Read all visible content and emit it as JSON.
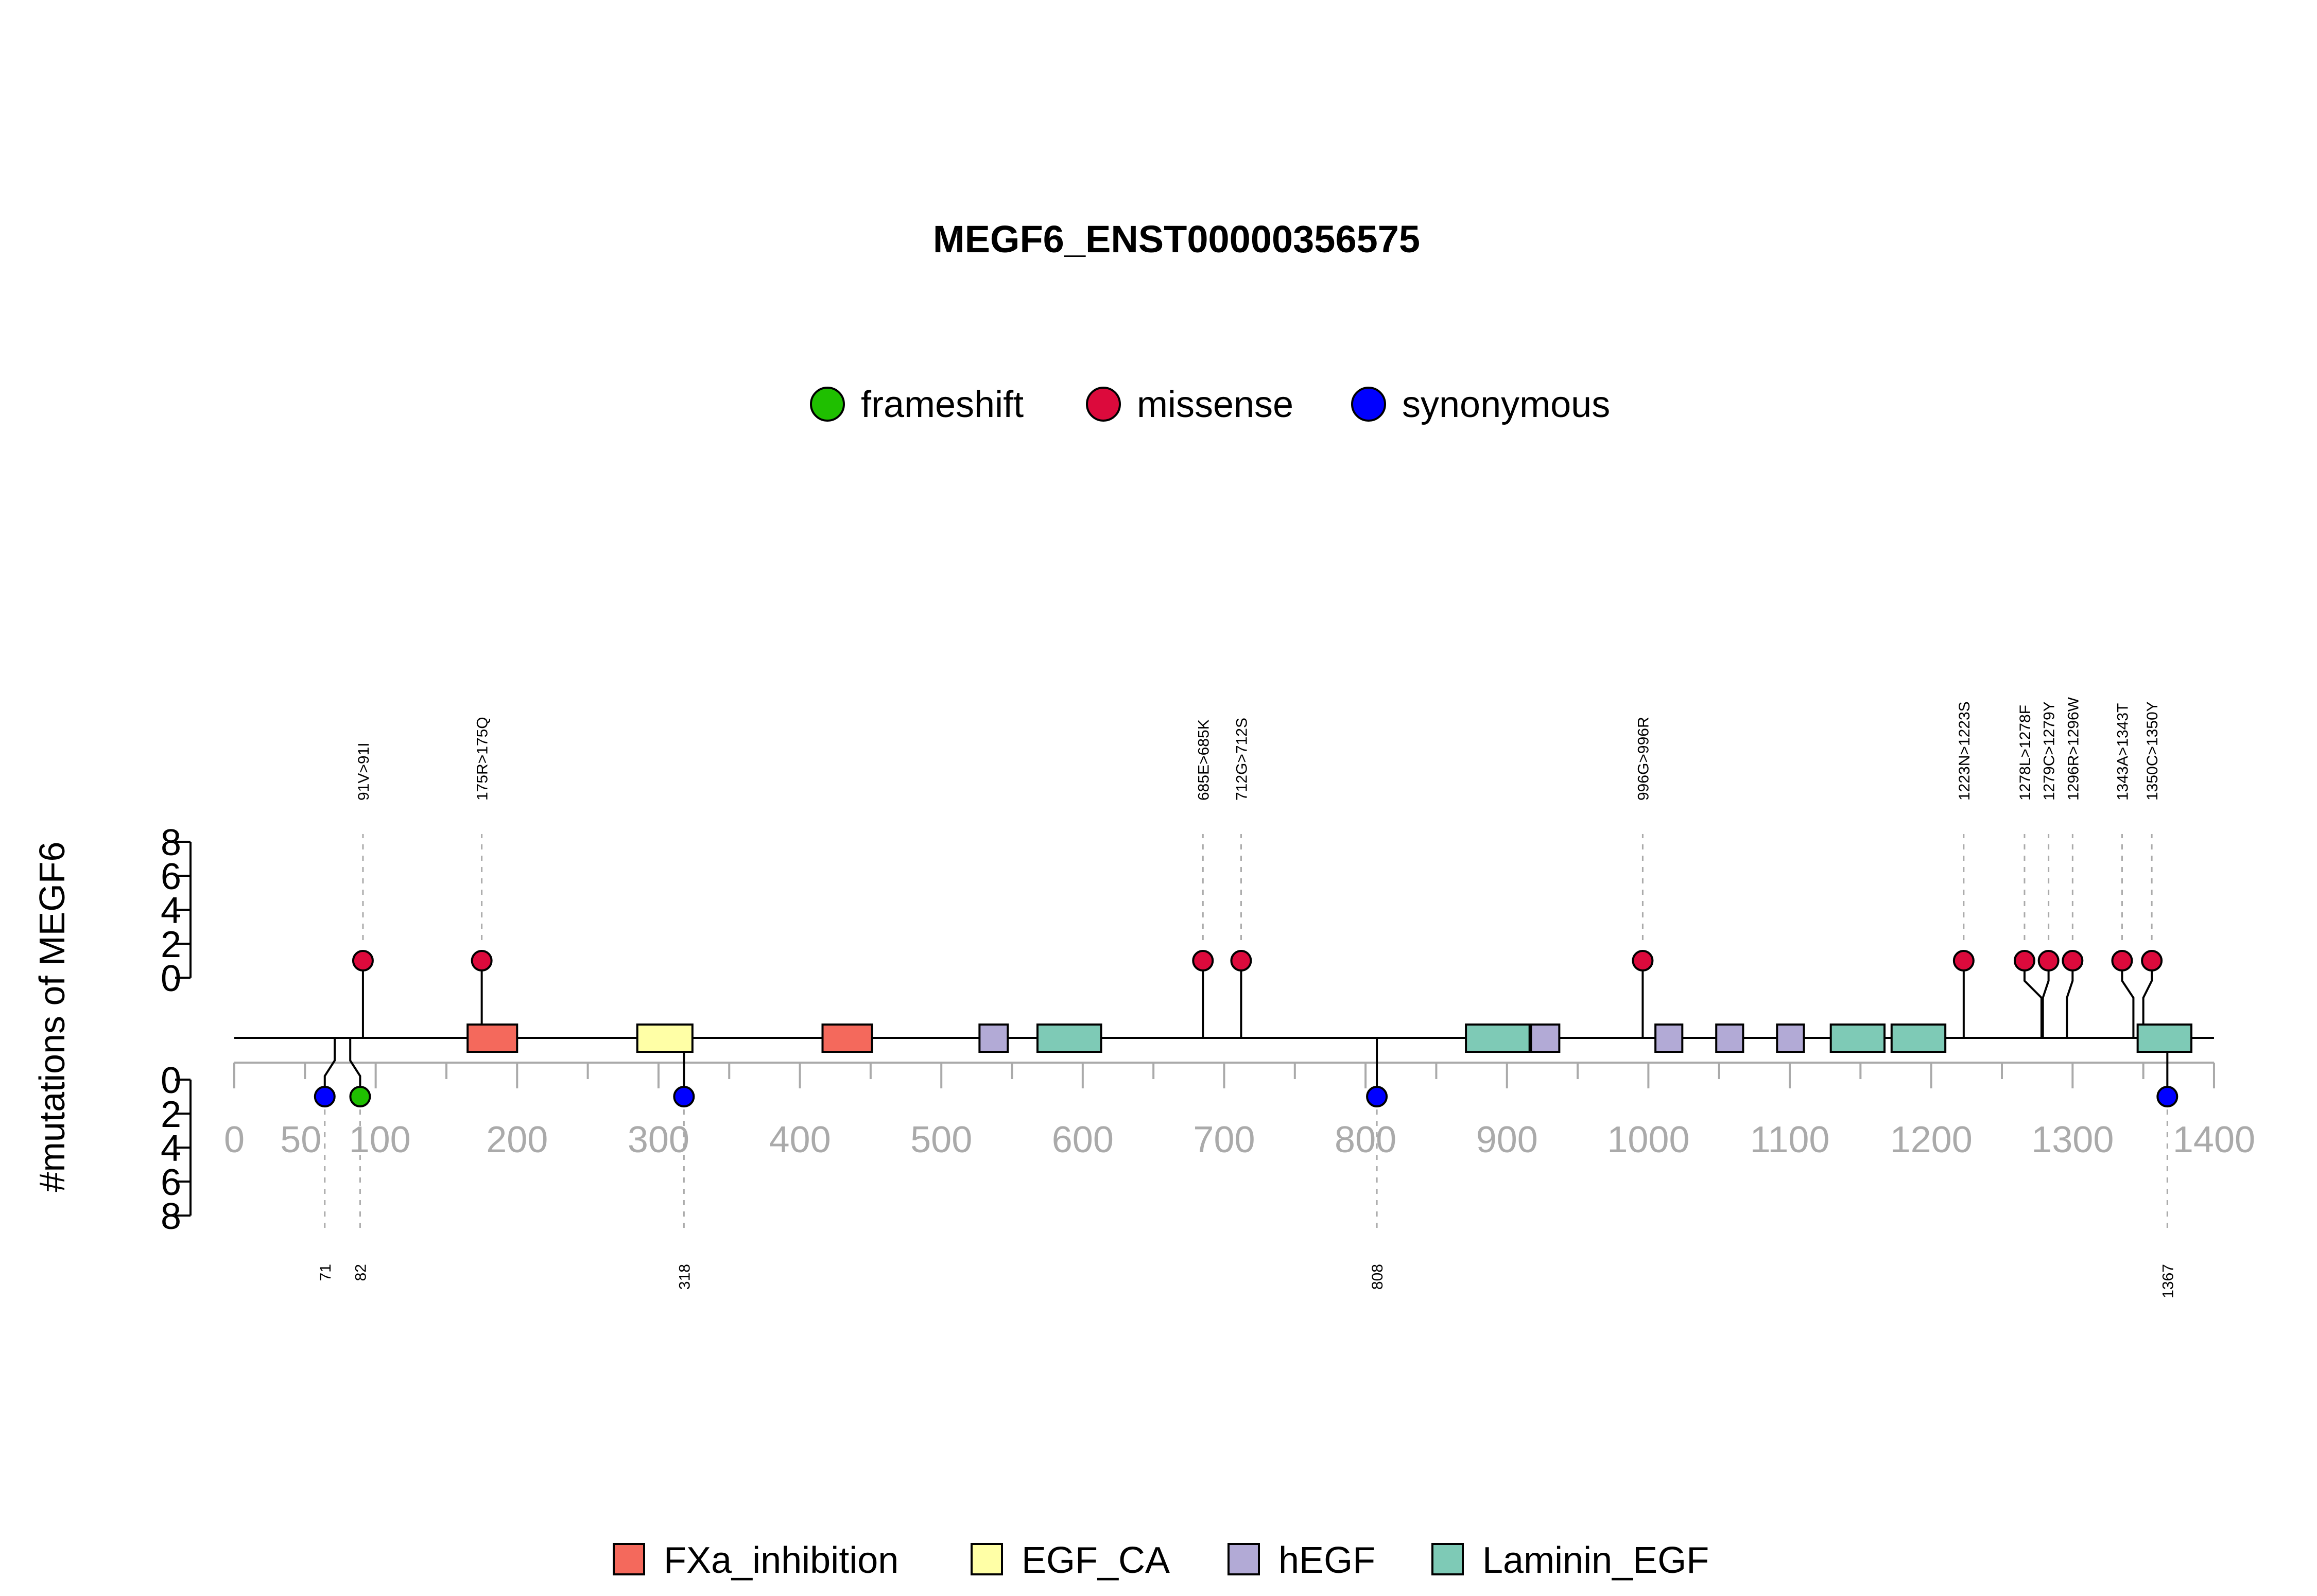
{
  "chart_data": {
    "type": "lollipop",
    "title": "MEGF6_ENST00000356575",
    "ylabel": "#mutations of MEGF6",
    "xlim": [
      0,
      1400
    ],
    "x_ticks": [
      0,
      50,
      100,
      200,
      300,
      400,
      500,
      600,
      700,
      800,
      900,
      1000,
      1100,
      1200,
      1300,
      1400
    ],
    "y_ticks": [
      0,
      2,
      4,
      6,
      8
    ],
    "ylim": [
      0,
      8
    ],
    "mutation_legend": [
      {
        "name": "frameshift",
        "color": "#1FBF00"
      },
      {
        "name": "missense",
        "color": "#DC0A3C"
      },
      {
        "name": "synonymous",
        "color": "#0000FF"
      }
    ],
    "domain_legend": [
      {
        "name": "FXa_inhibition",
        "color": "#F4695C"
      },
      {
        "name": "EGF_CA",
        "color": "#FFFFA6"
      },
      {
        "name": "hEGF",
        "color": "#B2AAD6"
      },
      {
        "name": "Laminin_EGF",
        "color": "#7ECAB6"
      }
    ],
    "domains": [
      {
        "name": "FXa_inhibition",
        "start": 165,
        "end": 200
      },
      {
        "name": "EGF_CA",
        "start": 285,
        "end": 324
      },
      {
        "name": "FXa_inhibition",
        "start": 416,
        "end": 451
      },
      {
        "name": "hEGF",
        "start": 527,
        "end": 547
      },
      {
        "name": "Laminin_EGF",
        "start": 568,
        "end": 613
      },
      {
        "name": "Laminin_EGF",
        "start": 871,
        "end": 916
      },
      {
        "name": "hEGF",
        "start": 917,
        "end": 937
      },
      {
        "name": "hEGF",
        "start": 1005,
        "end": 1024
      },
      {
        "name": "hEGF",
        "start": 1048,
        "end": 1067
      },
      {
        "name": "hEGF",
        "start": 1091,
        "end": 1110
      },
      {
        "name": "Laminin_EGF",
        "start": 1129,
        "end": 1167
      },
      {
        "name": "Laminin_EGF",
        "start": 1172,
        "end": 1210
      },
      {
        "name": "Laminin_EGF",
        "start": 1346,
        "end": 1384
      }
    ],
    "mutations_above": [
      {
        "pos": 91,
        "label": "91V>91I",
        "type": "missense",
        "count": 1
      },
      {
        "pos": 175,
        "label": "175R>175Q",
        "type": "missense",
        "count": 1
      },
      {
        "pos": 685,
        "label": "685E>685K",
        "type": "missense",
        "count": 1
      },
      {
        "pos": 712,
        "label": "712G>712S",
        "type": "missense",
        "count": 1
      },
      {
        "pos": 996,
        "label": "996G>996R",
        "type": "missense",
        "count": 1
      },
      {
        "pos": 1223,
        "label": "1223N>1223S",
        "type": "missense",
        "count": 1
      },
      {
        "pos": 1278,
        "label": "1278L>1278F",
        "type": "missense",
        "count": 1
      },
      {
        "pos": 1279,
        "label": "1279C>1279Y",
        "type": "missense",
        "count": 1
      },
      {
        "pos": 1296,
        "label": "1296R>1296W",
        "type": "missense",
        "count": 1
      },
      {
        "pos": 1343,
        "label": "1343A>1343T",
        "type": "missense",
        "count": 1
      },
      {
        "pos": 1350,
        "label": "1350C>1350Y",
        "type": "missense",
        "count": 1
      }
    ],
    "mutations_below": [
      {
        "pos": 71,
        "label": "71",
        "type": "synonymous",
        "count": 1
      },
      {
        "pos": 82,
        "label": "82",
        "type": "frameshift",
        "count": 1
      },
      {
        "pos": 318,
        "label": "318",
        "type": "synonymous",
        "count": 1
      },
      {
        "pos": 808,
        "label": "808",
        "type": "synonymous",
        "count": 1
      },
      {
        "pos": 1367,
        "label": "1367",
        "type": "synonymous",
        "count": 1
      }
    ]
  }
}
